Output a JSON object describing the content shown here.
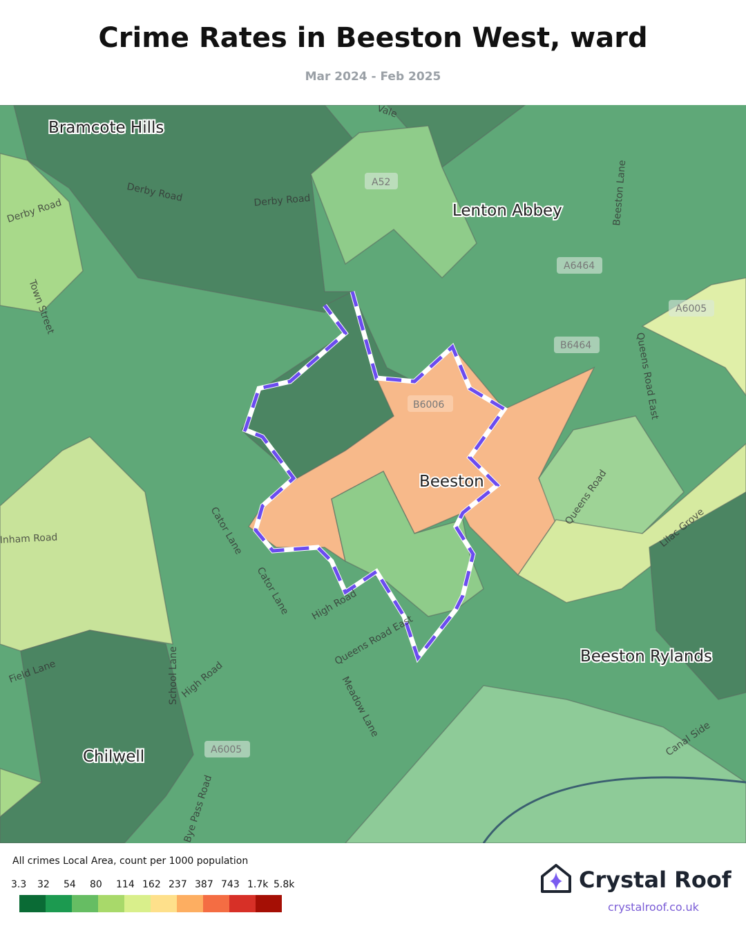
{
  "header": {
    "title": "Crime Rates in Beeston West, ward",
    "subtitle": "Mar 2024 - Feb 2025"
  },
  "map": {
    "places": [
      "Bramcote Hills",
      "Lenton Abbey",
      "Beeston",
      "Beeston Rylands",
      "Chilwell"
    ],
    "roads": [
      "Derby Road",
      "Derby Road",
      "Derby Road",
      "Town Street",
      "Cator Lane",
      "Cator Lane",
      "High Road",
      "Queens Road East",
      "Meadow Lane",
      "School Lane",
      "High Road",
      "Field Lane",
      "Queens Road",
      "Lilac Grove",
      "Queens Road East",
      "Beeston Lane",
      "Canal Side",
      "Bye Pass Road",
      "Vale",
      "Inham Road"
    ],
    "shields": [
      "A52",
      "A6464",
      "A6005",
      "B6464",
      "B6006",
      "A6005"
    ],
    "boundary_color": "#6b4cf0"
  },
  "legend": {
    "title": "All crimes Local Area, count per 1000 population",
    "ticks": [
      "3.3",
      "32",
      "54",
      "80",
      "114",
      "162",
      "237",
      "387",
      "743",
      "1.7k",
      "5.8k"
    ],
    "colors": [
      "#0a6b35",
      "#1c9a50",
      "#66bd63",
      "#a8d96a",
      "#d9ef8b",
      "#fee08b",
      "#fdae61",
      "#f46d43",
      "#d73027",
      "#a50f05"
    ]
  },
  "brand": {
    "name": "Crystal Roof",
    "url": "crystalroof.co.uk"
  }
}
